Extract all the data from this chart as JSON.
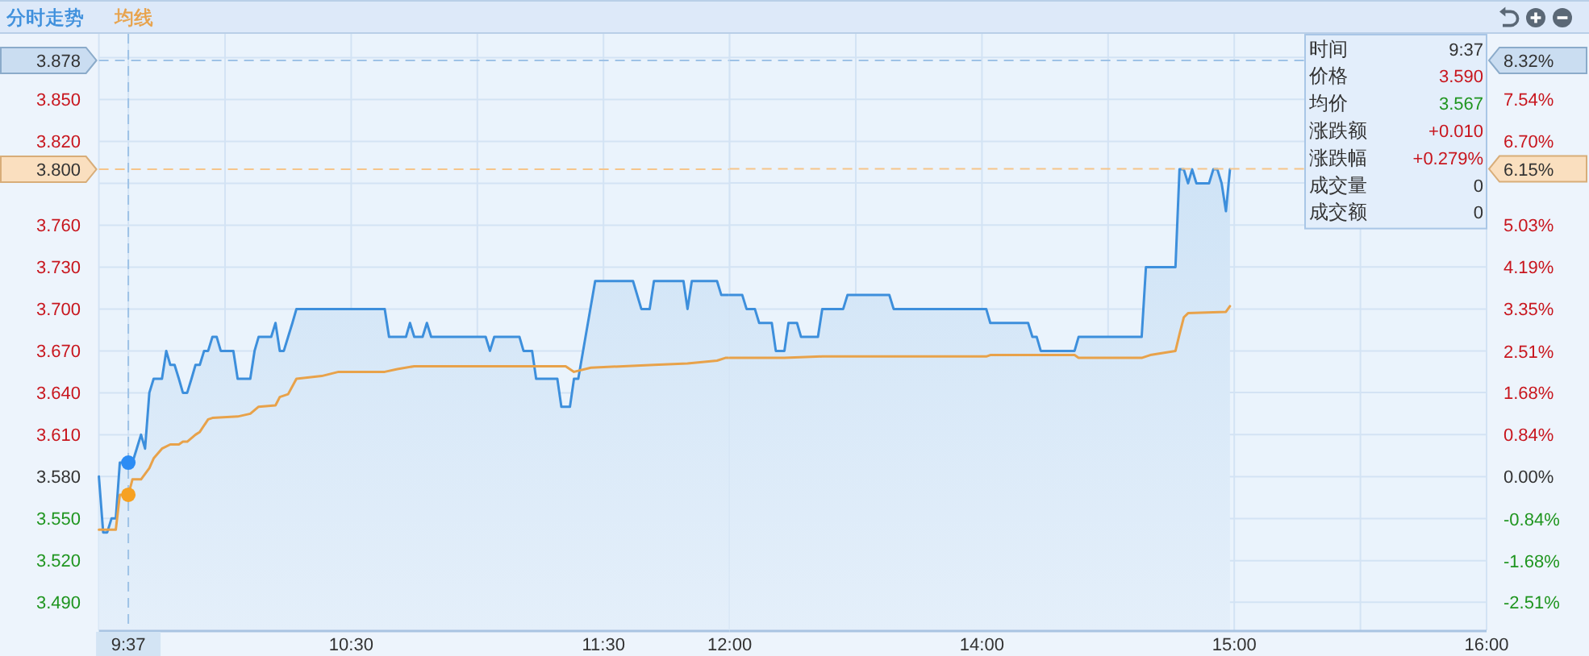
{
  "chart_data": [
    {
      "type": "line",
      "series": [
        {
          "name": "分时走势",
          "type": "area",
          "color": "#3d8fdc",
          "x": [
            9.5,
            9.517,
            9.533,
            9.55,
            9.567,
            9.583,
            9.633,
            9.65,
            9.667,
            9.683,
            9.7,
            9.717,
            9.75,
            9.767,
            9.783,
            9.8,
            9.817,
            9.833,
            9.85,
            9.867,
            9.883,
            9.9,
            9.917,
            9.933,
            9.95,
            9.967,
            9.983,
            10.033,
            10.05,
            10.1,
            10.117,
            10.133,
            10.183,
            10.2,
            10.217,
            10.233,
            10.25,
            10.267,
            10.283,
            10.633,
            10.65,
            10.717,
            10.733,
            10.75,
            10.783,
            10.8,
            10.817,
            11.033,
            11.05,
            11.067,
            11.167,
            11.183,
            11.217,
            11.233,
            11.317,
            11.333,
            11.367,
            11.383,
            11.4,
            11.467,
            11.617,
            11.65,
            11.683,
            11.7,
            11.817,
            11.833,
            11.85,
            11.95,
            11.967,
            12
          ],
          "values": [
            3.58,
            3.54,
            3.54,
            3.55,
            3.55,
            3.59,
            3.59,
            3.6,
            3.61,
            3.6,
            3.64,
            3.65,
            3.65,
            3.67,
            3.66,
            3.66,
            3.65,
            3.64,
            3.64,
            3.65,
            3.66,
            3.66,
            3.67,
            3.67,
            3.68,
            3.68,
            3.67,
            3.67,
            3.65,
            3.65,
            3.67,
            3.68,
            3.68,
            3.69,
            3.67,
            3.67,
            3.68,
            3.69,
            3.7,
            3.7,
            3.68,
            3.68,
            3.69,
            3.68,
            3.68,
            3.69,
            3.68,
            3.68,
            3.67,
            3.68,
            3.68,
            3.67,
            3.67,
            3.65,
            3.65,
            3.63,
            3.63,
            3.65,
            3.65,
            3.72,
            3.72,
            3.7,
            3.7,
            3.72,
            3.72,
            3.7,
            3.72,
            3.72,
            3.71,
            3.71
          ]
        },
        {
          "name": "均线",
          "color": "#e8a24a",
          "x": [
            9.5,
            9.567,
            9.583,
            9.617,
            9.633,
            9.667,
            9.7,
            9.717,
            9.75,
            9.783,
            9.817,
            9.833,
            9.85,
            9.883,
            9.9,
            9.933,
            9.95,
            10.05,
            10.1,
            10.133,
            10.2,
            10.217,
            10.25,
            10.283,
            10.383,
            10.45,
            10.633,
            10.683,
            10.75,
            11.35,
            11.383,
            11.45,
            11.7,
            11.833,
            11.95,
            11.983,
            12
          ],
          "values": [
            3.542,
            3.542,
            3.567,
            3.567,
            3.578,
            3.578,
            3.586,
            3.593,
            3.6,
            3.603,
            3.603,
            3.605,
            3.605,
            3.61,
            3.612,
            3.621,
            3.622,
            3.623,
            3.625,
            3.63,
            3.631,
            3.637,
            3.639,
            3.65,
            3.652,
            3.655,
            3.655,
            3.657,
            3.659,
            3.659,
            3.655,
            3.658,
            3.66,
            3.661,
            3.663,
            3.665,
            3.665
          ]
        },
        {
          "type": "scatter",
          "color": "#2c8cf4",
          "x": [
            9.6167
          ],
          "values": [
            3.59
          ]
        },
        {
          "type": "scatter",
          "color": "#f6a122",
          "x": [
            9.6167
          ],
          "values": [
            3.567
          ]
        }
      ],
      "xlim": [
        9.5,
        12
      ],
      "xticks": [
        {
          "value": 9.5,
          "label": null
        },
        {
          "value": 9.616667,
          "label": "9:37"
        },
        {
          "value": 10,
          "label": null
        },
        {
          "value": 10.5,
          "label": "10:30"
        },
        {
          "value": 11,
          "label": null
        },
        {
          "value": 11.5,
          "label": "11:30"
        },
        {
          "value": 12,
          "label": "12:00"
        }
      ],
      "ylim": [
        3.47,
        3.897
      ],
      "yticks": [
        {
          "value": 3.49,
          "label": "3.490"
        },
        {
          "value": 3.52,
          "label": "3.520"
        },
        {
          "value": 3.55,
          "label": "3.550"
        },
        {
          "value": 3.58,
          "label": "3.580"
        },
        {
          "value": 3.61,
          "label": "3.610"
        },
        {
          "value": 3.64,
          "label": "3.640"
        },
        {
          "value": 3.67,
          "label": "3.670"
        },
        {
          "value": 3.7,
          "label": "3.700"
        },
        {
          "value": 3.73,
          "label": "3.730"
        },
        {
          "value": 3.76,
          "label": "3.760"
        },
        {
          "value": 3.79,
          "label": null
        },
        {
          "value": 3.82,
          "label": "3.820"
        },
        {
          "value": 3.85,
          "label": "3.850"
        },
        {
          "value": 3.88,
          "label": null
        }
      ],
      "ref_lines": [
        {
          "axis": "y",
          "value": 3.878,
          "label": "3.878",
          "color": "#9ec2e6",
          "line_style": "dashed"
        },
        {
          "axis": "y",
          "value": 3.8,
          "label": "3.800",
          "color": "#f6c58a",
          "line_style": "dashed"
        },
        {
          "axis": "x",
          "value": 9.616667,
          "color": "#9ec2e6",
          "line_style": "dashed"
        }
      ],
      "grid": true,
      "legend": "top left"
    },
    {
      "type": "line",
      "series": [
        {
          "type": "area",
          "color": "#3d8fdc",
          "x": [
            13,
            13.05,
            13.067,
            13.1,
            13.117,
            13.167,
            13.183,
            13.217,
            13.233,
            13.267,
            13.283,
            13.35,
            13.367,
            13.45,
            13.467,
            13.633,
            13.65,
            14.017,
            14.033,
            14.183,
            14.2,
            14.217,
            14.233,
            14.367,
            14.383,
            14.633,
            14.65,
            14.767,
            14.783,
            14.8,
            14.817,
            14.833,
            14.85,
            14.9,
            14.917,
            14.933,
            14.95,
            14.967,
            14.983
          ],
          "values": [
            3.71,
            3.71,
            3.7,
            3.7,
            3.69,
            3.69,
            3.67,
            3.67,
            3.69,
            3.69,
            3.68,
            3.68,
            3.7,
            3.7,
            3.71,
            3.71,
            3.7,
            3.7,
            3.69,
            3.69,
            3.68,
            3.68,
            3.67,
            3.67,
            3.68,
            3.68,
            3.73,
            3.73,
            3.8,
            3.8,
            3.79,
            3.8,
            3.79,
            3.79,
            3.8,
            3.8,
            3.79,
            3.77,
            3.8
          ]
        },
        {
          "color": "#e8a24a",
          "x": [
            13,
            13.217,
            13.367,
            14.017,
            14.033,
            14.367,
            14.383,
            14.633,
            14.667,
            14.767,
            14.783,
            14.8,
            14.817,
            14.967,
            14.983
          ],
          "values": [
            3.665,
            3.665,
            3.666,
            3.666,
            3.667,
            3.667,
            3.665,
            3.665,
            3.667,
            3.67,
            3.682,
            3.694,
            3.697,
            3.698,
            3.702
          ]
        }
      ],
      "xlim": [
        13,
        16
      ],
      "xticks": [
        {
          "value": 13,
          "label": null
        },
        {
          "value": 13.5,
          "label": null
        },
        {
          "value": 14,
          "label": "14:00"
        },
        {
          "value": 14.5,
          "label": null
        },
        {
          "value": 15,
          "label": "15:00"
        },
        {
          "value": 15.5,
          "label": null
        },
        {
          "value": 16,
          "label": "16:00"
        }
      ],
      "ylim": [
        3.47,
        3.897
      ],
      "y2lim": [
        -3.07,
        8.85
      ],
      "y2ticks": [
        {
          "value": -2.51,
          "label": "-2.51%"
        },
        {
          "value": -1.68,
          "label": "-1.68%"
        },
        {
          "value": -0.84,
          "label": "-0.84%"
        },
        {
          "value": 0,
          "label": "0.00%"
        },
        {
          "value": 0.84,
          "label": "0.84%"
        },
        {
          "value": 1.68,
          "label": "1.68%"
        },
        {
          "value": 2.51,
          "label": "2.51%"
        },
        {
          "value": 3.35,
          "label": "3.35%"
        },
        {
          "value": 4.19,
          "label": "4.19%"
        },
        {
          "value": 5.03,
          "label": "5.03%"
        },
        {
          "value": 5.87,
          "label": null
        },
        {
          "value": 6.7,
          "label": "6.70%"
        },
        {
          "value": 7.54,
          "label": "7.54%"
        },
        {
          "value": 8.38,
          "label": null
        }
      ],
      "ref_lines": [
        {
          "axis": "y2",
          "value": 8.32,
          "label": "8.32%",
          "color": "#9ec2e6",
          "line_style": "dashed"
        },
        {
          "axis": "y2",
          "value": 6.15,
          "label": "6.15%",
          "color": "#f6c58a",
          "line_style": "dashed"
        }
      ],
      "annotations": [
        "时间",
        "9:37",
        "价格",
        "3.590",
        "均价",
        "3.567",
        "涨跌额",
        "+0.010",
        "涨跌幅",
        "+0.279%",
        "成交量",
        "0",
        "成交额",
        "0"
      ],
      "grid": true
    }
  ]
}
